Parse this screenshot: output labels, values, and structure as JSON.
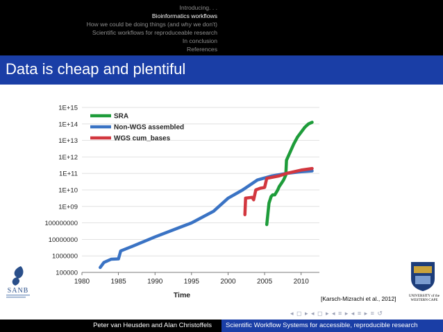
{
  "nav": {
    "sections": [
      {
        "label": "Introducing. . .",
        "active": false
      },
      {
        "label": "Bioinformatics workflows",
        "active": true
      },
      {
        "label": "How we could be doing things (and why we don't)",
        "active": false
      },
      {
        "label": "Scientific workflows for reproduceable research",
        "active": false
      },
      {
        "label": "In conclusion",
        "active": false
      },
      {
        "label": "References",
        "active": false
      }
    ]
  },
  "frame": {
    "title": "Data is cheap and plentiful"
  },
  "chart_data": {
    "type": "line",
    "x_axis_label": "Time",
    "x_ticks": [
      "1980",
      "1985",
      "1990",
      "1995",
      "2000",
      "2005",
      "2010"
    ],
    "y_scale": "log",
    "y_ticks": [
      "100000",
      "1000000",
      "10000000",
      "100000000",
      "1E+09",
      "1E+10",
      "1E+11",
      "1E+12",
      "1E+13",
      "1E+14",
      "1E+15"
    ],
    "xlim": [
      1980,
      2012.5
    ],
    "ylim_log10": [
      5,
      15
    ],
    "legend_position": "top-left",
    "series": [
      {
        "name": "SRA",
        "color": "#1e9c3a",
        "points": [
          [
            2005.3,
            7.9
          ],
          [
            2005.6,
            9.2
          ],
          [
            2005.9,
            9.6
          ],
          [
            2006.1,
            9.7
          ],
          [
            2006.4,
            9.7
          ],
          [
            2006.8,
            10.0
          ],
          [
            2007.0,
            10.2
          ],
          [
            2007.3,
            10.4
          ],
          [
            2007.6,
            10.6
          ],
          [
            2007.9,
            10.9
          ],
          [
            2008.0,
            11.8
          ],
          [
            2008.5,
            12.3
          ],
          [
            2009.0,
            12.8
          ],
          [
            2009.5,
            13.2
          ],
          [
            2010.0,
            13.5
          ],
          [
            2010.5,
            13.8
          ],
          [
            2011.0,
            14.0
          ],
          [
            2011.5,
            14.1
          ]
        ]
      },
      {
        "name": "Non-WGS assembled",
        "color": "#3a73c4",
        "points": [
          [
            1982.5,
            5.3
          ],
          [
            1983,
            5.6
          ],
          [
            1984,
            5.8
          ],
          [
            1985.0,
            5.82
          ],
          [
            1985.3,
            6.3
          ],
          [
            1987,
            6.6
          ],
          [
            1990,
            7.15
          ],
          [
            1995,
            8.0
          ],
          [
            1998,
            8.7
          ],
          [
            2000,
            9.5
          ],
          [
            2002,
            10.0
          ],
          [
            2004,
            10.6
          ],
          [
            2006,
            10.85
          ],
          [
            2008,
            11.0
          ],
          [
            2010,
            11.1
          ],
          [
            2011.5,
            11.15
          ]
        ]
      },
      {
        "name": "WGS cum_bases",
        "color": "#d2373f",
        "points": [
          [
            2002.3,
            8.5
          ],
          [
            2002.4,
            9.5
          ],
          [
            2003.3,
            9.55
          ],
          [
            2003.5,
            9.4
          ],
          [
            2003.8,
            10.0
          ],
          [
            2004.4,
            10.1
          ],
          [
            2005.0,
            10.15
          ],
          [
            2005.3,
            10.7
          ],
          [
            2007.0,
            10.85
          ],
          [
            2008.0,
            11.0
          ],
          [
            2010.0,
            11.2
          ],
          [
            2011.5,
            11.3
          ]
        ]
      }
    ]
  },
  "citation": "[Karsch-Mizrachi et al., 2012]",
  "logos": {
    "sanb_text": "SANB",
    "uwc_line1": "UNIVERSITY of the",
    "uwc_line2": "WESTERN CAPE"
  },
  "nav_symbols": "◂ ◻ ▸ ◂ ◻ ▸ ◂ ≡ ▸ ◂ ≡ ▸ ≡ ↺",
  "footer": {
    "authors": "Peter van Heusden and Alan Christoffels",
    "talk_title": "Scientific Workflow Systems for accessible, reproducible research"
  },
  "colors": {
    "frame_blue": "#1a3ea6",
    "nav_black": "#000000"
  }
}
